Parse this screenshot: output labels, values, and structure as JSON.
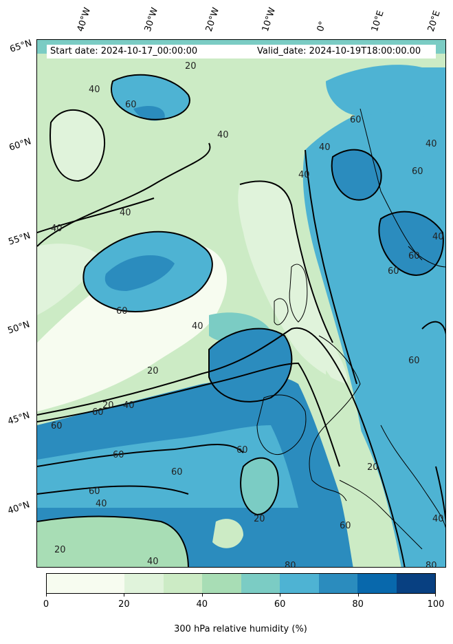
{
  "header": {
    "start_date": "Start date: 2024-10-17_00:00:00",
    "valid_date": "Valid_date: 2024-10-19T18:00:00.00"
  },
  "longitude_labels": [
    "40°W",
    "30°W",
    "20°W",
    "10°W",
    "0°",
    "10°E",
    "20°E"
  ],
  "latitude_labels": [
    "65°N",
    "60°N",
    "55°N",
    "50°N",
    "45°N",
    "40°N"
  ],
  "colorbar": {
    "title": "300 hPa relative humidity (%)",
    "tick_labels": [
      "0",
      "20",
      "40",
      "60",
      "80",
      "100"
    ],
    "colors": [
      "#f7fcf0",
      "#e0f3db",
      "#ccebc5",
      "#a8ddb5",
      "#7bccc4",
      "#4eb3d3",
      "#2b8cbe",
      "#0868ac",
      "#084081"
    ]
  },
  "contour_labels": [
    "20",
    "40",
    "60",
    "80"
  ],
  "map": {
    "field": "300 hPa relative humidity",
    "contour_levels": [
      20,
      40,
      60,
      80
    ],
    "region": "North Atlantic and Europe"
  }
}
